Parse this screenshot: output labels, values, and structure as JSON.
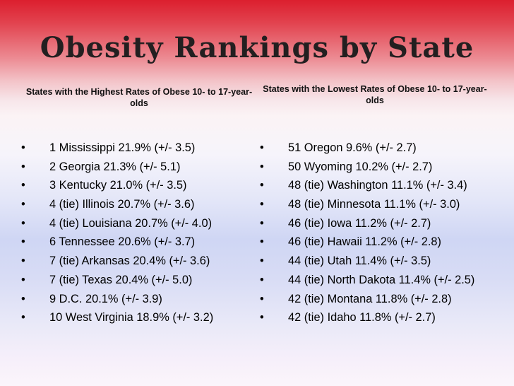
{
  "slide": {
    "title": "Obesity Rankings by State",
    "highest": {
      "heading": "States with the Highest Rates of Obese 10- to 17-year-olds",
      "items": [
        "1 Mississippi 21.9% (+/- 3.5)",
        "2 Georgia 21.3% (+/- 5.1)",
        "3 Kentucky 21.0% (+/- 3.5)",
        "4 (tie) Illinois 20.7% (+/- 3.6)",
        "4 (tie) Louisiana 20.7% (+/- 4.0)",
        "6 Tennessee 20.6% (+/- 3.7)",
        "7 (tie) Arkansas 20.4% (+/- 3.6)",
        "7 (tie) Texas 20.4% (+/- 5.0)",
        "9 D.C. 20.1% (+/- 3.9)",
        "10 West Virginia 18.9% (+/- 3.2)"
      ]
    },
    "lowest": {
      "heading": "States with the Lowest Rates of Obese 10- to 17-year-olds",
      "items": [
        "51 Oregon 9.6% (+/- 2.7)",
        "50 Wyoming 10.2% (+/- 2.7)",
        "48 (tie) Washington 11.1% (+/- 3.4)",
        "48 (tie) Minnesota 11.1% (+/- 3.0)",
        "46 (tie) Iowa 11.2% (+/- 2.7)",
        "46 (tie) Hawaii 11.2% (+/- 2.8)",
        "44 (tie) Utah 11.4% (+/- 3.5)",
        "44 (tie) North Dakota 11.4% (+/- 2.5)",
        "42 (tie) Montana 11.8% (+/- 2.8)",
        "42 (tie) Idaho 11.8% (+/- 2.7)"
      ]
    },
    "bullet": "•"
  }
}
